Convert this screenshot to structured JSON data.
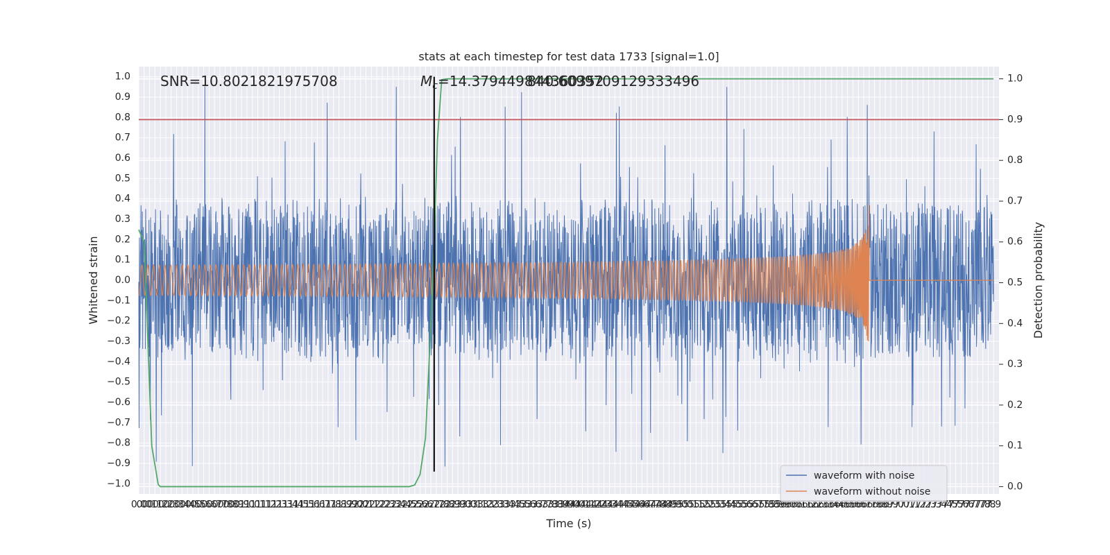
{
  "chart_data": {
    "type": "line",
    "title": "stats at each timestep for test data 1733 [signal=1.0]",
    "xlabel": "Time (s)",
    "ylabel": "Whitened strain",
    "ylabel_right": "Detection probability",
    "xlim": [
      0.0,
      7.95
    ],
    "ylim": [
      -1.05,
      1.05
    ],
    "ylim_right": [
      -0.018,
      1.03
    ],
    "x_ticks": [
      0.0,
      0.05,
      0.1,
      0.15,
      0.2,
      0.25,
      0.3,
      0.35,
      0.4,
      0.45,
      0.5,
      0.55,
      0.6,
      0.65,
      0.7,
      0.75,
      0.8,
      0.85,
      0.9,
      0.95,
      1.0,
      1.05,
      1.1,
      1.15,
      1.2,
      1.25,
      1.3,
      1.35,
      1.4,
      1.45,
      1.5,
      1.55,
      1.6,
      1.65,
      1.7,
      1.75,
      1.8,
      1.85,
      1.9,
      1.95,
      2.0,
      2.05,
      2.1,
      2.15,
      2.2,
      2.25,
      2.3,
      2.35,
      2.4,
      2.45,
      2.5,
      2.55,
      2.6,
      2.65,
      2.7,
      2.75,
      2.8,
      2.85,
      2.9,
      2.95,
      3.0,
      3.05,
      3.1,
      3.15,
      3.2,
      3.25,
      3.3,
      3.35,
      3.4,
      3.45,
      3.5,
      3.55,
      3.6,
      3.65,
      3.7,
      3.75,
      3.8,
      3.85,
      3.9,
      3.95,
      4.0,
      4.05,
      4.1,
      4.15,
      4.2,
      4.25,
      4.3,
      4.35,
      4.4,
      4.45,
      4.5,
      4.55,
      4.6,
      4.65,
      4.7,
      4.75,
      4.8,
      4.85,
      4.9,
      4.95,
      5.0,
      5.05,
      5.1,
      5.15,
      5.2,
      5.25,
      5.3,
      5.35,
      5.4,
      5.45,
      5.5,
      5.55,
      5.6,
      5.65,
      5.7,
      5.75,
      5.8,
      5.85,
      5.9,
      5.95,
      6.0,
      6.05,
      6.1,
      6.15,
      6.2,
      6.25,
      6.3,
      6.35,
      6.4,
      6.45,
      6.5,
      6.55,
      6.6,
      6.65,
      6.7,
      6.75,
      6.8,
      6.85,
      6.9,
      6.95,
      7.0,
      7.05,
      7.1,
      7.15,
      7.2,
      7.25,
      7.3,
      7.35,
      7.4,
      7.45,
      7.5,
      7.55,
      7.6,
      7.65,
      7.7,
      7.75,
      7.8,
      7.85,
      7.9
    ],
    "x_tick_labels": [
      "0.0",
      "0.0",
      "0.1",
      "0.1",
      "0.2",
      "0.2",
      "0.3",
      "0.3",
      "0.4",
      "0.4",
      "0.5",
      "0.5",
      "0.6",
      "0.6",
      "0.7",
      "0.7",
      "0.8",
      "0.8",
      "0.9",
      "0.9",
      "1.0",
      "1.0",
      "1.1",
      "1.1",
      "1.2",
      "1.2",
      "1.3",
      "1.3",
      "1.4",
      "1.4",
      "1.5",
      "1.5",
      "1.6",
      "1.6",
      "1.7",
      "1.7",
      "1.8",
      "1.8",
      "1.9",
      "1.9",
      "2.0",
      "2.0",
      "2.1",
      "2.1",
      "2.2",
      "2.2",
      "2.3",
      "2.3",
      "2.4",
      "2.4",
      "2.5",
      "2.5",
      "2.6",
      "2.6",
      "2.7",
      "2.7",
      "2.8",
      "2.8",
      "2.9",
      "2.9",
      "3.0",
      "3.0",
      "3.1",
      "3.1",
      "3.2",
      "3.2",
      "3.3",
      "3.3",
      "3.4",
      "3.4",
      "3.5",
      "3.5",
      "3.6",
      "3.6",
      "3.7",
      "3.7",
      "3.8",
      "3.8",
      "3.9",
      "3.9",
      "4.0",
      "4.0",
      "4.1",
      "4.1",
      "4.2",
      "4.2",
      "4.3",
      "4.3",
      "4.4",
      "4.4",
      "4.5",
      "4.5",
      "4.6",
      "4.6",
      "4.7",
      "4.7",
      "4.8",
      "4.8",
      "4.9",
      "4.9",
      "5.0",
      "5.0",
      "5.1",
      "5.1",
      "5.2",
      "5.2",
      "5.3",
      "5.3",
      "5.4",
      "5.4",
      "5.5",
      "5.5",
      "5.6",
      "5.6",
      "5.7",
      "5.7",
      "5.8",
      "5.8",
      "5.9",
      "5.9",
      "6.0",
      "6.0",
      "6.1",
      "6.1",
      "6.2",
      "6.2",
      "6.3",
      "6.3",
      "6.4",
      "6.4",
      "6.5",
      "6.5",
      "6.6",
      "6.6",
      "6.7",
      "6.7",
      "6.8",
      "6.8",
      "6.9",
      "6.9",
      "7.0",
      "7.0",
      "7.1",
      "7.1",
      "7.2",
      "7.2",
      "7.3",
      "7.3",
      "7.4",
      "7.4",
      "7.5",
      "7.5",
      "7.6",
      "7.6",
      "7.7",
      "7.7",
      "7.8",
      "7.8",
      "7.9",
      "7.9"
    ],
    "y_ticks": [
      -1.0,
      -0.9,
      -0.8,
      -0.7,
      -0.6,
      -0.5,
      -0.4,
      -0.3,
      -0.2,
      -0.1,
      0.0,
      0.1,
      0.2,
      0.3,
      0.4,
      0.5,
      0.6,
      0.7,
      0.8,
      0.9,
      1.0
    ],
    "y_tick_labels": [
      "−1.0",
      "−0.9",
      "−0.8",
      "−0.7",
      "−0.6",
      "−0.5",
      "−0.4",
      "−0.3",
      "−0.2",
      "−0.1",
      "0.0",
      "0.1",
      "0.2",
      "0.3",
      "0.4",
      "0.5",
      "0.6",
      "0.7",
      "0.8",
      "0.9",
      "1.0"
    ],
    "y_ticks_right": [
      0.0,
      0.1,
      0.2,
      0.3,
      0.4,
      0.5,
      0.6,
      0.7,
      0.8,
      0.9,
      1.0
    ],
    "y_tick_labels_right": [
      "0.0",
      "0.1",
      "0.2",
      "0.3",
      "0.4",
      "0.5",
      "0.6",
      "0.7",
      "0.8",
      "0.9",
      "1.0"
    ],
    "annotations": {
      "snr": "SNR=10.8021821975708",
      "mc_symbol": "M",
      "mc_subscript": "c",
      "mc_value": "=14.379449844360352",
      "mc_overlap": "840.6099709129333496"
    },
    "vertical_marker": {
      "x": 2.73,
      "y_top": 1.0,
      "y_bottom": -0.94,
      "color": "#000000"
    },
    "threshold_line": {
      "y_right": 0.9,
      "color": "#c44e52"
    },
    "colors": {
      "noise": "#4c72b0",
      "clean": "#dd8452",
      "probability": "#55a868",
      "grid_bg": "#eaeaf2",
      "grid_line": "#ffffff"
    },
    "series": [
      {
        "name": "waveform with noise",
        "axis": "left",
        "kind": "noisy_strain",
        "envelope": 0.38,
        "peak_max": 1.0,
        "peak_min": -0.96
      },
      {
        "name": "waveform without noise",
        "axis": "left",
        "kind": "chirp",
        "start_amplitude": 0.012,
        "peak_amplitude": 0.41,
        "merger_time": 6.75
      },
      {
        "name": "detection probability",
        "axis": "right",
        "kind": "line",
        "x": [
          0.0,
          0.05,
          0.12,
          0.18,
          0.2,
          2.5,
          2.55,
          2.6,
          2.65,
          2.7,
          2.73,
          2.76,
          2.8,
          2.85,
          2.9,
          7.9
        ],
        "y": [
          0.63,
          0.6,
          0.1,
          0.005,
          0.0,
          0.0,
          0.004,
          0.03,
          0.12,
          0.4,
          0.6,
          0.85,
          0.998,
          1.0,
          1.0,
          1.0
        ]
      }
    ],
    "legend": {
      "position": "lower right",
      "entries": [
        {
          "label": "waveform with noise",
          "color": "#4c72b0"
        },
        {
          "label": "waveform without noise",
          "color": "#dd8452"
        }
      ]
    }
  }
}
